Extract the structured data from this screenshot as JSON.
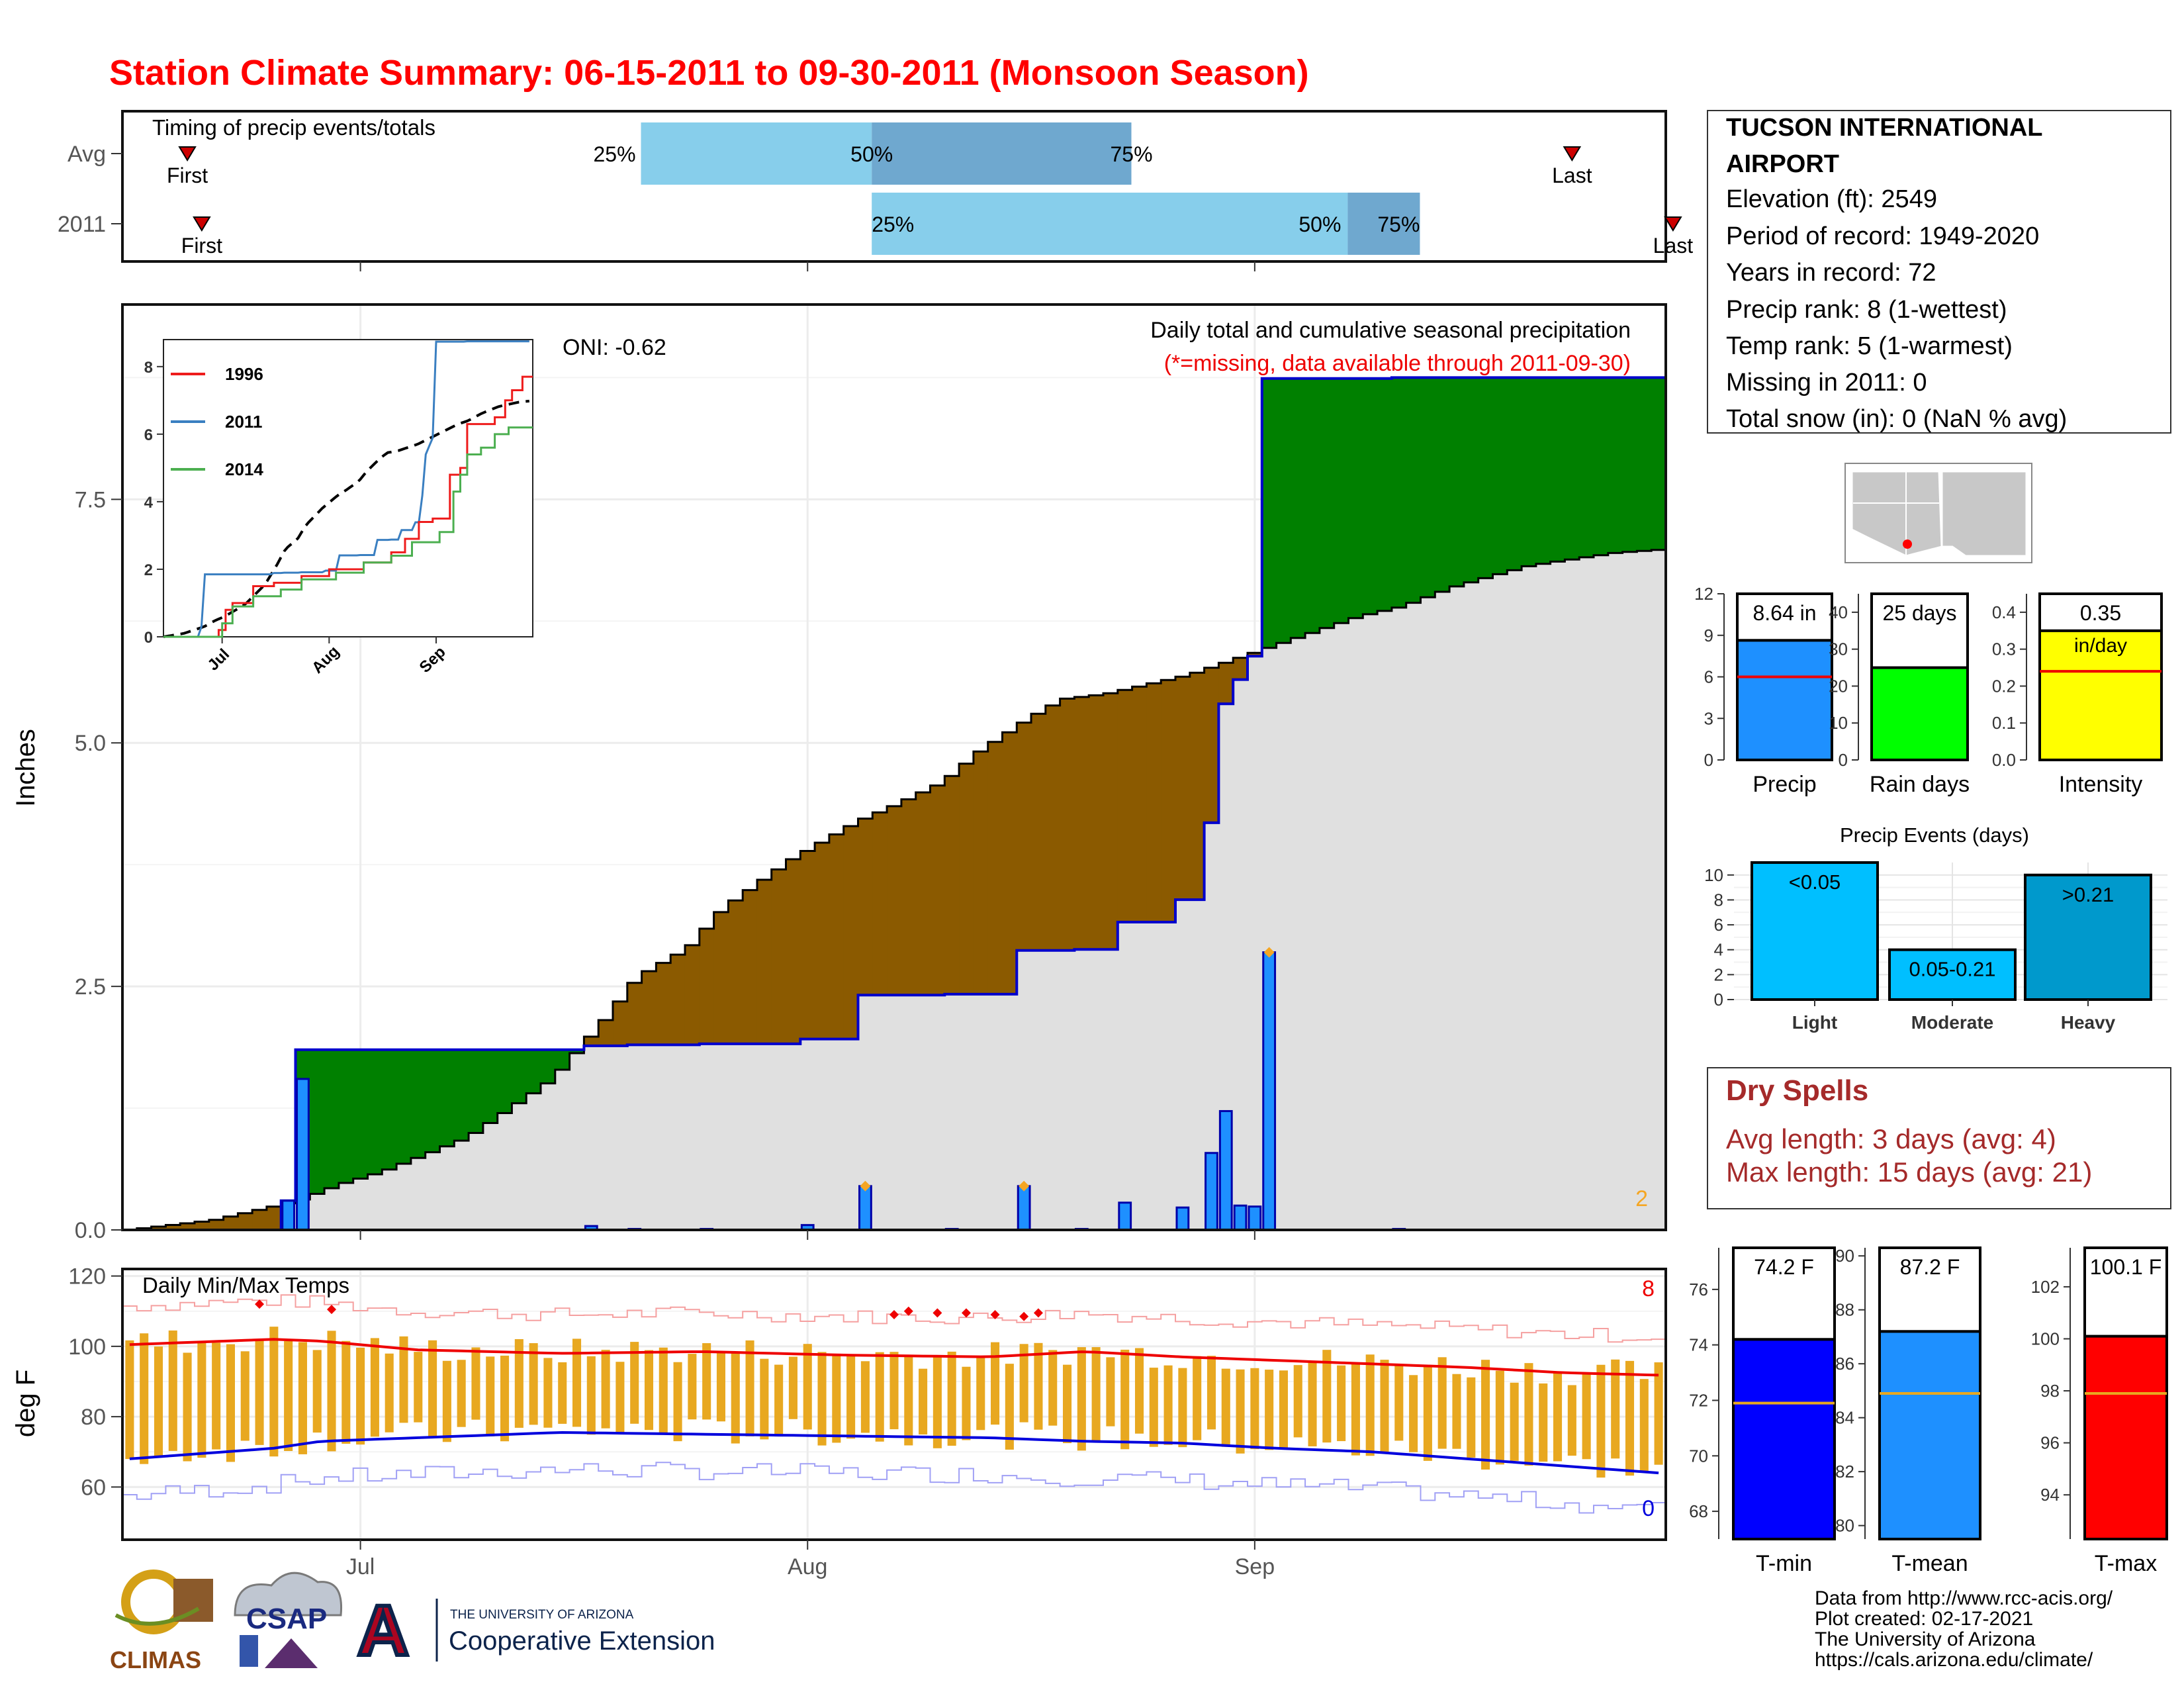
{
  "title": "Station Climate Summary: 06-15-2011 to 09-30-2011 (Monsoon Season)",
  "colors": {
    "title": "#ff0000",
    "timing_light": "#87ceeb",
    "timing_dark": "#6fa8cf",
    "deficit": "#8b5a00",
    "surplus": "#008000",
    "avg_fill": "#e0e0e0",
    "daily_bar": "#1e90ff",
    "precip_bar": "#1e90ff",
    "raindays_bar": "#00ff00",
    "intensity_bar": "#ffff00",
    "events_bar": "#00bfff",
    "temp_bar": "#e8a820",
    "tmin_bar": "#0000ff",
    "tmean_bar": "#1e90ff",
    "tmax_bar": "#ff0000",
    "dry_spells": "#a52a2a"
  },
  "timing": {
    "label": "Timing of precip events/totals",
    "rows": [
      {
        "name": "Avg",
        "first": "06-19",
        "last": "09-23",
        "p25": "07-21",
        "p50": "08-06",
        "p75": "08-24",
        "first_label": "First",
        "last_label": "Last",
        "p25_label": "25%",
        "p50_label": "50%",
        "p75_label": "75%"
      },
      {
        "name": "2011",
        "first": "06-20",
        "last": "09-30",
        "p25": "08-06",
        "p50": "09-08",
        "p75": "09-13",
        "first_label": "First",
        "last_label": "Last",
        "p25_label": "25%",
        "p50_label": "50%",
        "p75_label": "75%"
      }
    ]
  },
  "main": {
    "ylabel": "Inches",
    "ylim": [
      0,
      9.5
    ],
    "yticks": [
      0.0,
      2.5,
      5.0,
      7.5
    ],
    "ytick_labels": [
      "0.0",
      "2.5",
      "5.0",
      "7.5"
    ],
    "oni": "ONI: -0.62",
    "note1": "Daily total and cumulative seasonal precipitation",
    "note2": "(*=missing, data available through 2011-09-30)",
    "corner_count": "2"
  },
  "inset": {
    "yticks": [
      0,
      2,
      4,
      6,
      8
    ],
    "ytick_labels": [
      "0",
      "2",
      "4",
      "6",
      "8"
    ],
    "xtick_labels": [
      "Jul",
      "Aug",
      "Sep"
    ],
    "legend": [
      {
        "name": "1996",
        "color": "#ee1c1c"
      },
      {
        "name": "2011",
        "color": "#3a7fc1"
      },
      {
        "name": "2014",
        "color": "#4caf50"
      }
    ]
  },
  "temps": {
    "label": "Daily Min/Max Temps",
    "ylabel": "deg F",
    "ylim": [
      45,
      122
    ],
    "yticks": [
      60,
      80,
      100,
      120
    ],
    "ytick_labels": [
      "60",
      "80",
      "100",
      "120"
    ],
    "count_top": "8",
    "count_bottom": "0",
    "xtick_labels": [
      "Jul",
      "Aug",
      "Sep"
    ]
  },
  "station": {
    "name_line1": "TUCSON INTERNATIONAL",
    "name_line2": "AIRPORT",
    "lines": [
      "Elevation (ft): 2549",
      "Period of record: 1949-2020",
      "Years in record: 72",
      "Precip rank: 8 (1-wettest)",
      "Temp rank: 5 (1-warmest)",
      "Missing in 2011: 0",
      "Total snow (in): 0 (NaN % avg)"
    ]
  },
  "summary_bars": {
    "precip": {
      "label": "Precip",
      "value": 8.64,
      "avg": 6.0,
      "value_label": "8.64 in",
      "ylim": [
        0,
        12
      ],
      "ytick_labels": [
        "0",
        "3",
        "6",
        "9",
        "12"
      ]
    },
    "raindays": {
      "label": "Rain days",
      "value": 25,
      "avg": 25,
      "value_label": "25 days",
      "ylim": [
        0,
        45
      ],
      "ytick_labels": [
        "0",
        "10",
        "20",
        "30",
        "40"
      ]
    },
    "intensity": {
      "label": "Intensity",
      "value": 0.35,
      "avg": 0.24,
      "value_label": "0.35",
      "value_unit": "in/day",
      "ylim": [
        0,
        0.45
      ],
      "ytick_labels": [
        "0.0",
        "0.1",
        "0.2",
        "0.3",
        "0.4"
      ]
    }
  },
  "events": {
    "title": "Precip Events (days)",
    "ylim": [
      0,
      11
    ],
    "ytick_labels": [
      "0",
      "2",
      "4",
      "6",
      "8",
      "10"
    ],
    "categories": [
      "Light",
      "Moderate",
      "Heavy"
    ],
    "values": [
      11,
      4,
      10
    ],
    "bar_labels": [
      "<0.05",
      "0.05-0.21",
      ">0.21"
    ]
  },
  "dry_spells": {
    "title": "Dry Spells",
    "avg_line": "Avg length: 3 days (avg: 4)",
    "max_line": "Max length: 15 days (avg: 21)"
  },
  "temp_bars": {
    "tmin": {
      "label": "T-min",
      "value": 74.2,
      "avg": 71.9,
      "value_label": "74.2 F",
      "ylim": [
        67,
        77.5
      ],
      "ytick_labels": [
        "68",
        "70",
        "72",
        "74",
        "76"
      ]
    },
    "tmean": {
      "label": "T-mean",
      "value": 87.2,
      "avg": 84.9,
      "value_label": "87.2 F",
      "ylim": [
        79.5,
        90.3
      ],
      "ytick_labels": [
        "80",
        "82",
        "84",
        "86",
        "88",
        "90"
      ]
    },
    "tmax": {
      "label": "T-max",
      "value": 100.1,
      "avg": 97.9,
      "value_label": "100.1 F",
      "ylim": [
        92.3,
        103.5
      ],
      "ytick_labels": [
        "94",
        "96",
        "98",
        "100",
        "102"
      ]
    }
  },
  "logos": {
    "climas": "CLIMAS",
    "csap": "CSAP",
    "university": "THE UNIVERSITY OF ARIZONA",
    "extension": "Cooperative Extension",
    "a_letter": "A"
  },
  "credits": [
    "Data from http://www.rcc-acis.org/",
    "Plot created: 02-17-2021",
    "The University of Arizona",
    "https://cals.arizona.edu/climate/"
  ],
  "chart_data": [
    {
      "type": "area",
      "name": "cumulative precipitation",
      "x_start": "06-15",
      "x_end": "09-30",
      "ylim": [
        0,
        9.5
      ],
      "avg_cumulative_keypoints": [
        [
          0,
          0
        ],
        [
          10,
          0.1
        ],
        [
          20,
          0.3
        ],
        [
          25,
          0.47
        ],
        [
          30,
          0.6
        ],
        [
          40,
          0.95
        ],
        [
          45,
          1.25
        ],
        [
          50,
          1.55
        ],
        [
          56,
          2.15
        ],
        [
          60,
          2.6
        ],
        [
          66,
          2.9
        ],
        [
          70,
          3.3
        ],
        [
          78,
          3.8
        ],
        [
          86,
          4.2
        ],
        [
          90,
          4.35
        ],
        [
          96,
          4.6
        ],
        [
          100,
          4.9
        ],
        [
          106,
          5.25
        ],
        [
          110,
          5.45
        ],
        [
          115,
          5.5
        ],
        [
          125,
          5.7
        ],
        [
          135,
          6.0
        ],
        [
          145,
          6.3
        ],
        [
          150,
          6.4
        ],
        [
          156,
          6.6
        ],
        [
          160,
          6.7
        ],
        [
          165,
          6.82
        ],
        [
          175,
          6.95
        ],
        [
          180,
          6.98
        ]
      ],
      "daily_precip": [
        [
          19,
          0.3
        ],
        [
          20,
          0.5
        ],
        [
          21,
          1.05
        ],
        [
          55,
          0.04
        ],
        [
          59,
          0.01
        ],
        [
          68,
          0.01
        ],
        [
          80,
          0.05
        ],
        [
          86,
          0.45
        ],
        [
          96,
          0.01
        ],
        [
          106,
          0.45
        ],
        [
          112,
          0.01
        ],
        [
          118,
          0.28
        ],
        [
          124,
          0.23
        ],
        [
          128,
          0.79
        ],
        [
          129,
          1.22
        ],
        [
          131,
          0.25
        ],
        [
          132,
          0.12
        ],
        [
          133,
          0.12
        ],
        [
          134,
          2.85
        ],
        [
          150,
          0.01
        ]
      ],
      "daily_precip_2011": [
        [
          19,
          0.3
        ],
        [
          20,
          0.5
        ],
        [
          21,
          1.05
        ],
        [
          55,
          0.04
        ],
        [
          59,
          0.01
        ],
        [
          68,
          0.01
        ],
        [
          80,
          0.05
        ],
        [
          86,
          0.45
        ],
        [
          96,
          0.01
        ],
        [
          106,
          0.45
        ],
        [
          112,
          0.01
        ],
        [
          118,
          0.28
        ],
        [
          124,
          0.23
        ],
        [
          128,
          0.79
        ],
        [
          129,
          1.22
        ],
        [
          131,
          0.25
        ],
        [
          132,
          0.12
        ],
        [
          133,
          0.12
        ],
        [
          134,
          2.85
        ],
        [
          150,
          0.01
        ]
      ]
    },
    {
      "type": "line",
      "name": "daily temps",
      "x_start": "06-15",
      "x_end": "09-30",
      "ylim": [
        45,
        122
      ],
      "tmax_avg_keypoints": [
        [
          0,
          100.5
        ],
        [
          15,
          102
        ],
        [
          20,
          101.5
        ],
        [
          30,
          99
        ],
        [
          45,
          98
        ],
        [
          60,
          98.5
        ],
        [
          75,
          97.5
        ],
        [
          90,
          97
        ],
        [
          100,
          98.5
        ],
        [
          110,
          97
        ],
        [
          120,
          96
        ],
        [
          130,
          95
        ],
        [
          140,
          94
        ],
        [
          150,
          92.5
        ],
        [
          160,
          91.8
        ]
      ],
      "tmin_avg_keypoints": [
        [
          0,
          68
        ],
        [
          15,
          71
        ],
        [
          20,
          73
        ],
        [
          30,
          74
        ],
        [
          45,
          75.5
        ],
        [
          60,
          75
        ],
        [
          75,
          74.5
        ],
        [
          90,
          74
        ],
        [
          100,
          73
        ],
        [
          110,
          72.5
        ],
        [
          120,
          71
        ],
        [
          130,
          70
        ],
        [
          140,
          68
        ],
        [
          150,
          66
        ],
        [
          160,
          64
        ]
      ]
    }
  ]
}
